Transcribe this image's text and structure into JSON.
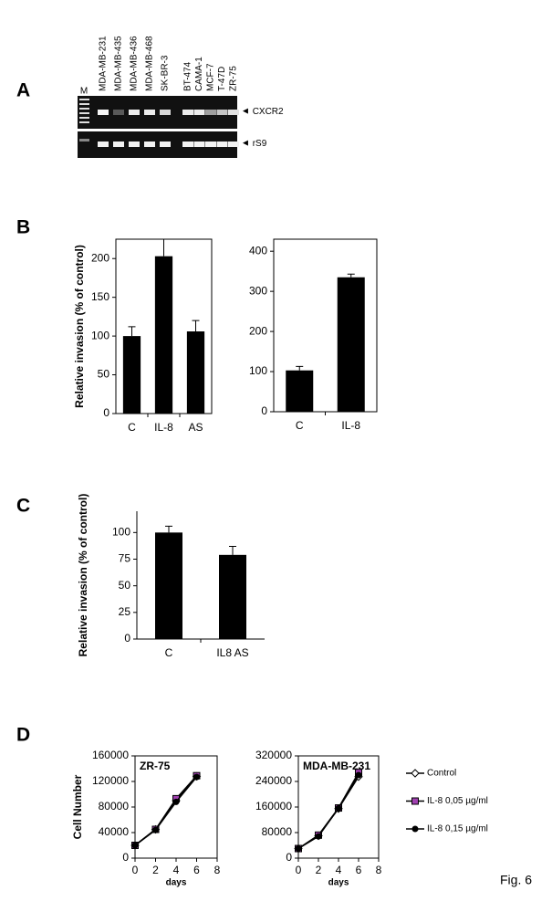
{
  "panels": [
    "A",
    "B",
    "C",
    "D"
  ],
  "figure_label": "Fig. 6",
  "gel": {
    "marker_lane": "M",
    "lanes": [
      "MDA-MB-231",
      "MDA-MB-435",
      "MDA-MB-436",
      "MDA-MB-468",
      "SK-BR-3",
      "BT-474",
      "CAMA-1",
      "MCF-7",
      "T-47D",
      "ZR-75"
    ],
    "bands": [
      "CXCR2",
      "rS9"
    ]
  },
  "chart_data": [
    {
      "type": "bar",
      "y_label": "Relative invasion (% of control)",
      "categories": [
        "C",
        "IL-8",
        "AS"
      ],
      "values": [
        100,
        203,
        106
      ],
      "errors": [
        12,
        22,
        14
      ],
      "color": "#000000",
      "ylim": [
        0,
        225
      ],
      "yticks": [
        0,
        50,
        100,
        150,
        200
      ]
    },
    {
      "type": "bar",
      "categories": [
        "C",
        "IL-8"
      ],
      "values": [
        103,
        335
      ],
      "errors": [
        10,
        8
      ],
      "color": "#000000",
      "ylim": [
        0,
        430
      ],
      "yticks": [
        0,
        100,
        200,
        300,
        400
      ]
    },
    {
      "type": "bar",
      "y_label": "Relative invasion (% of control)",
      "categories": [
        "C",
        "IL8 AS"
      ],
      "values": [
        100,
        79
      ],
      "errors": [
        6,
        8
      ],
      "color": "#000000",
      "ylim": [
        0,
        120
      ],
      "yticks": [
        0,
        25,
        50,
        75,
        100
      ]
    },
    {
      "type": "line",
      "title": "ZR-75",
      "x_label": "days",
      "y_label": "Cell Number",
      "x": [
        0,
        2,
        4,
        6
      ],
      "xlim": [
        0,
        8
      ],
      "xticks": [
        0,
        2,
        4,
        6,
        8
      ],
      "ylim": [
        0,
        160000
      ],
      "yticks": [
        0,
        40000,
        80000,
        120000,
        160000
      ],
      "legend": "right",
      "series": [
        {
          "name": "Control",
          "color": "#000000",
          "marker": "diamond",
          "marker_fill": "#ffffff",
          "values": [
            20000,
            45000,
            90000,
            128000
          ]
        },
        {
          "name": "IL-8 0,05 µg/ml",
          "color": "#000000",
          "marker": "square",
          "marker_fill": "#a040b0",
          "values": [
            20000,
            45000,
            93000,
            129000
          ]
        },
        {
          "name": "IL-8 0,15 µg/ml",
          "color": "#000000",
          "marker": "circle",
          "marker_fill": "#000000",
          "values": [
            20000,
            44000,
            88000,
            127000
          ]
        }
      ]
    },
    {
      "type": "line",
      "title": "MDA-MB-231",
      "x_label": "days",
      "x": [
        0,
        2,
        4,
        6
      ],
      "xlim": [
        0,
        8
      ],
      "xticks": [
        0,
        2,
        4,
        6,
        8
      ],
      "ylim": [
        0,
        320000
      ],
      "yticks": [
        0,
        80000,
        160000,
        240000,
        320000
      ],
      "series": [
        {
          "color": "#000000",
          "marker": "diamond",
          "marker_fill": "#ffffff",
          "values": [
            30000,
            70000,
            155000,
            255000
          ]
        },
        {
          "color": "#000000",
          "marker": "square",
          "marker_fill": "#a040b0",
          "values": [
            30000,
            72000,
            157000,
            268000
          ]
        },
        {
          "color": "#000000",
          "marker": "circle",
          "marker_fill": "#000000",
          "values": [
            30000,
            68000,
            156000,
            260000
          ]
        }
      ]
    }
  ]
}
